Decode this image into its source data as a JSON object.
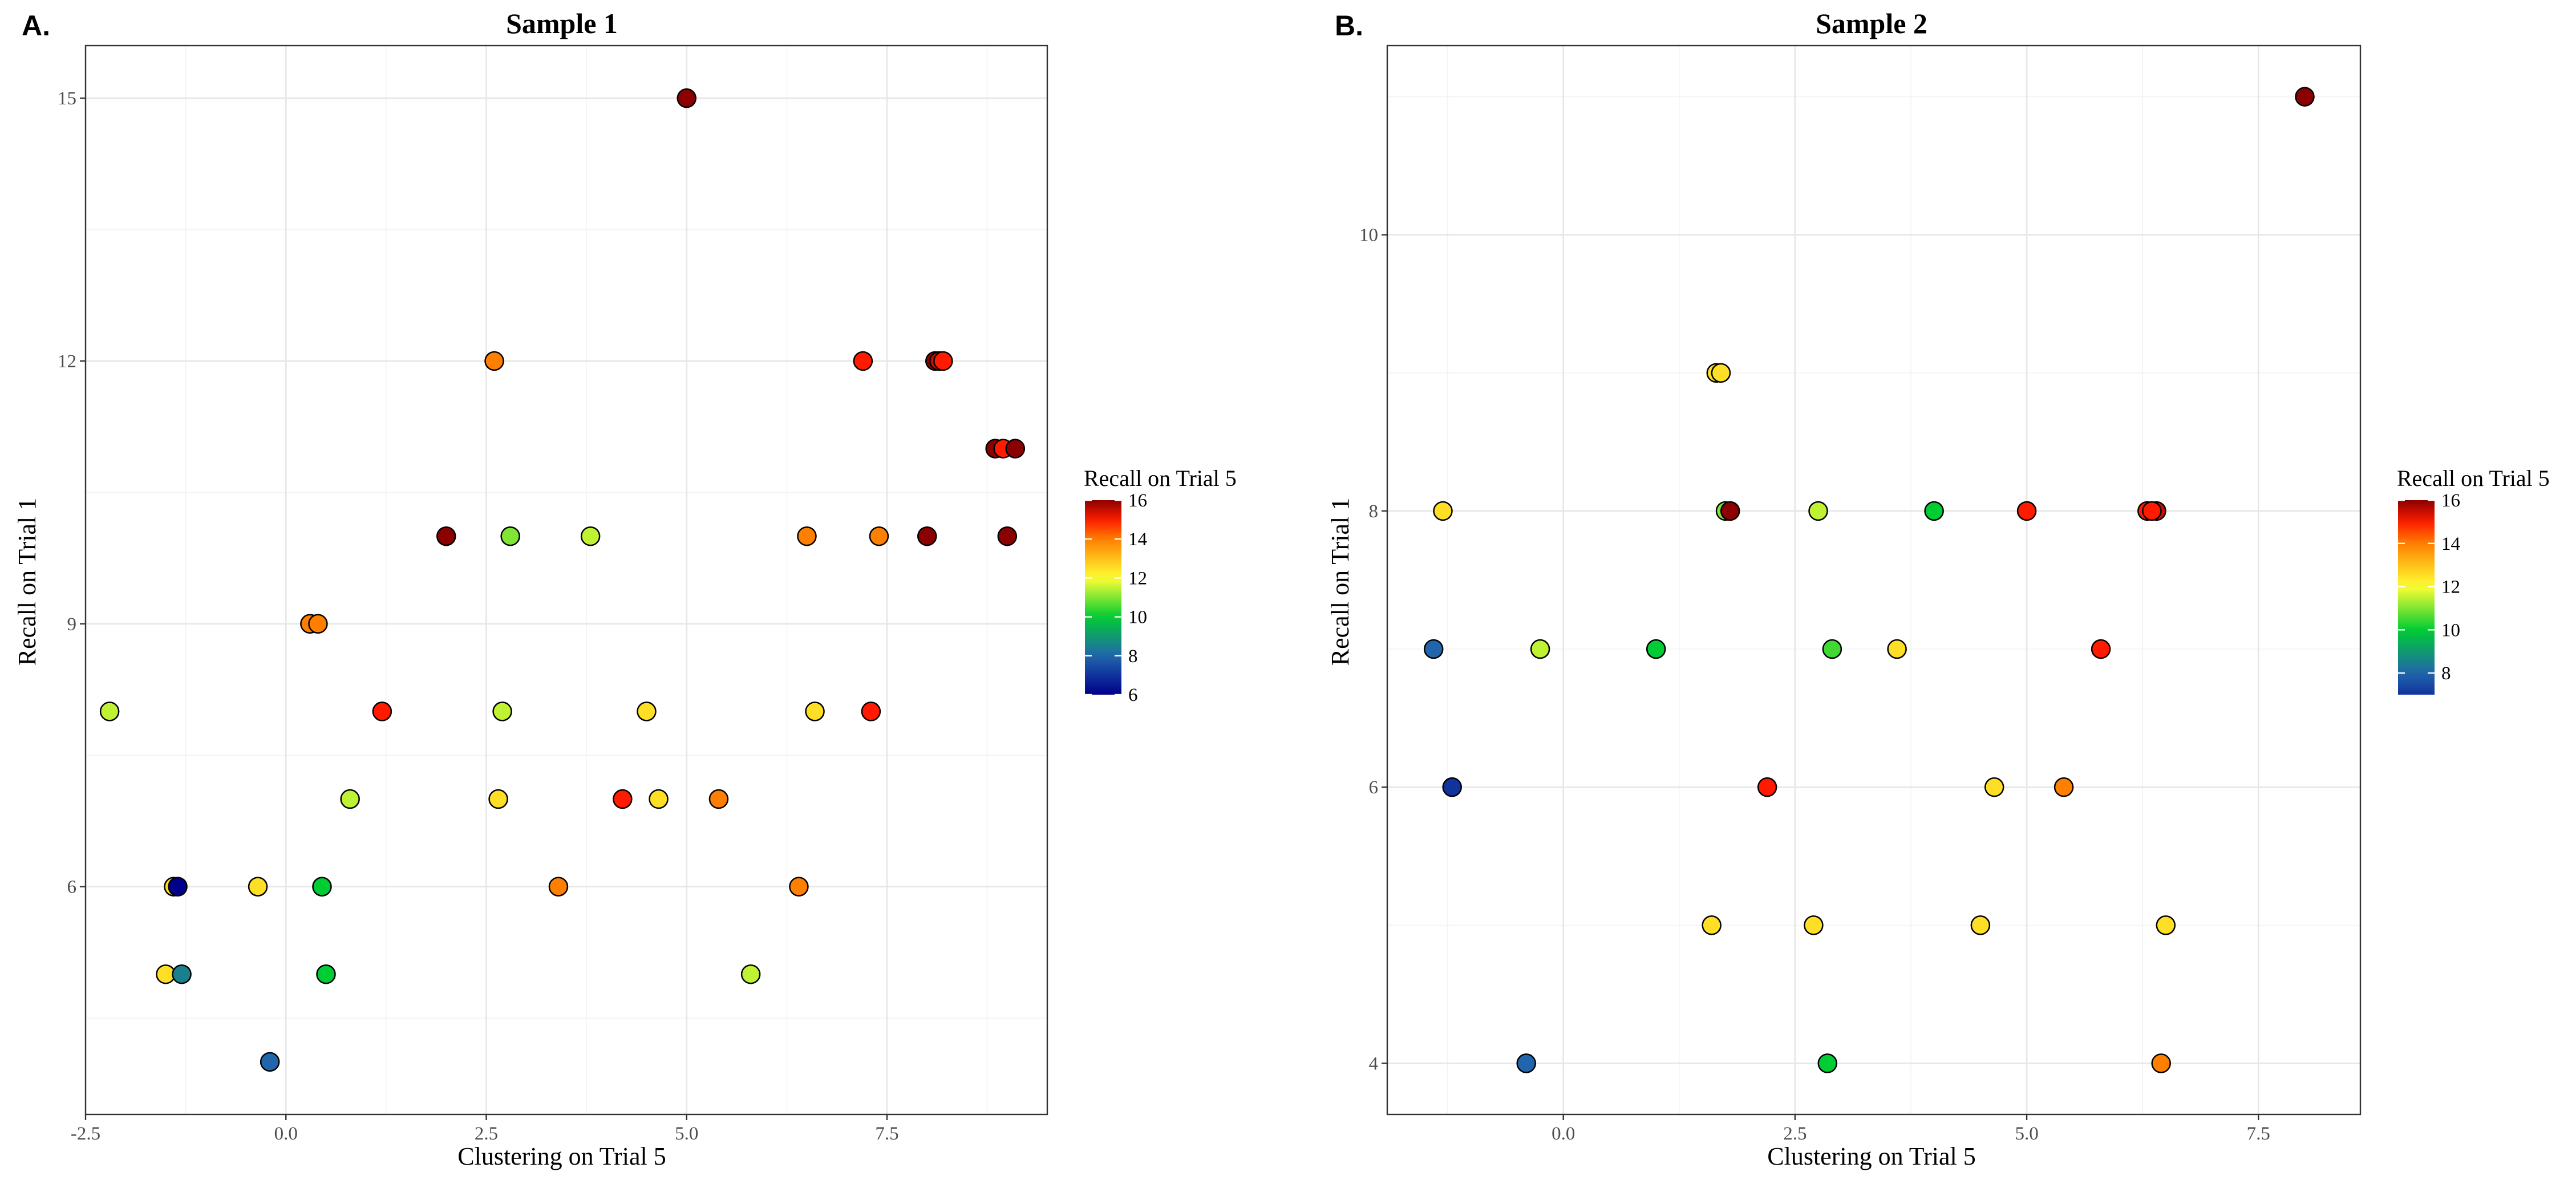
{
  "colors": {
    "scale": [
      "#00008b",
      "#2166ac",
      "#00cc33",
      "#ffff33",
      "#ff7f00",
      "#ff1a00",
      "#8b0000"
    ],
    "scale_stops": [
      6,
      8,
      10,
      12,
      14,
      15,
      16
    ]
  },
  "chart_data": [
    {
      "type": "scatter",
      "panel_letter": "A.",
      "title": "Sample 1",
      "xlabel": "Clustering on Trial 5",
      "ylabel": "Recall on Trial 1",
      "xlim": [
        -2.5,
        9.5
      ],
      "ylim": [
        3.4,
        15.6
      ],
      "xticks": [
        -2.5,
        0.0,
        2.5,
        5.0,
        7.5
      ],
      "xtick_labels": [
        "-2.5",
        "0.0",
        "2.5",
        "5.0",
        "7.5"
      ],
      "yticks": [
        6,
        9,
        12,
        15
      ],
      "ytick_labels": [
        "6",
        "9",
        "12",
        "15"
      ],
      "color_scale": {
        "title": "Recall on Trial 5",
        "min": 6,
        "max": 16,
        "ticks": [
          6,
          8,
          10,
          12,
          14,
          16
        ],
        "tick_labels": [
          "6",
          "8",
          "10",
          "12",
          "14",
          "16"
        ]
      },
      "points": [
        {
          "x": 5.0,
          "y": 15,
          "c": 16
        },
        {
          "x": 2.6,
          "y": 12,
          "c": 14
        },
        {
          "x": 7.2,
          "y": 12,
          "c": 15
        },
        {
          "x": 8.1,
          "y": 12,
          "c": 16
        },
        {
          "x": 8.15,
          "y": 12,
          "c": 15.5
        },
        {
          "x": 8.2,
          "y": 12,
          "c": 15
        },
        {
          "x": 8.85,
          "y": 11,
          "c": 16
        },
        {
          "x": 8.95,
          "y": 11,
          "c": 15
        },
        {
          "x": 9.1,
          "y": 11,
          "c": 16
        },
        {
          "x": 2.0,
          "y": 10,
          "c": 16
        },
        {
          "x": 2.8,
          "y": 10,
          "c": 11
        },
        {
          "x": 3.8,
          "y": 10,
          "c": 11.5
        },
        {
          "x": 6.5,
          "y": 10,
          "c": 14
        },
        {
          "x": 7.4,
          "y": 10,
          "c": 14
        },
        {
          "x": 8.0,
          "y": 10,
          "c": 16
        },
        {
          "x": 9.0,
          "y": 10,
          "c": 16
        },
        {
          "x": 0.3,
          "y": 9,
          "c": 14
        },
        {
          "x": 0.4,
          "y": 9,
          "c": 14
        },
        {
          "x": -2.2,
          "y": 8,
          "c": 11.5
        },
        {
          "x": 1.2,
          "y": 8,
          "c": 15
        },
        {
          "x": 2.7,
          "y": 8,
          "c": 11.5
        },
        {
          "x": 4.5,
          "y": 8,
          "c": 12.5
        },
        {
          "x": 6.6,
          "y": 8,
          "c": 12.5
        },
        {
          "x": 7.3,
          "y": 8,
          "c": 15
        },
        {
          "x": 0.8,
          "y": 7,
          "c": 11.5
        },
        {
          "x": 2.65,
          "y": 7,
          "c": 12.5
        },
        {
          "x": 4.2,
          "y": 7,
          "c": 15
        },
        {
          "x": 4.65,
          "y": 7,
          "c": 12.5
        },
        {
          "x": 5.4,
          "y": 7,
          "c": 14
        },
        {
          "x": -1.4,
          "y": 6,
          "c": 12.5
        },
        {
          "x": -1.35,
          "y": 6,
          "c": 6
        },
        {
          "x": -0.35,
          "y": 6,
          "c": 12.5
        },
        {
          "x": 0.45,
          "y": 6,
          "c": 10
        },
        {
          "x": 3.4,
          "y": 6,
          "c": 14
        },
        {
          "x": 6.4,
          "y": 6,
          "c": 14
        },
        {
          "x": -1.5,
          "y": 5,
          "c": 12.5
        },
        {
          "x": -1.3,
          "y": 5,
          "c": 8.5
        },
        {
          "x": 0.5,
          "y": 5,
          "c": 10
        },
        {
          "x": 5.8,
          "y": 5,
          "c": 11.5
        },
        {
          "x": -0.2,
          "y": 4,
          "c": 8
        }
      ]
    },
    {
      "type": "scatter",
      "panel_letter": "B.",
      "title": "Sample 2",
      "xlabel": "Clustering on Trial 5",
      "ylabel": "Recall on Trial 1",
      "xlim": [
        -1.9,
        8.6
      ],
      "ylim": [
        3.63,
        11.37
      ],
      "xticks": [
        0.0,
        2.5,
        5.0,
        7.5
      ],
      "xtick_labels": [
        "0.0",
        "2.5",
        "5.0",
        "7.5"
      ],
      "yticks": [
        4,
        6,
        8,
        10
      ],
      "ytick_labels": [
        "4",
        "6",
        "8",
        "10"
      ],
      "color_scale": {
        "title": "Recall on Trial 5",
        "min": 7,
        "max": 16,
        "ticks": [
          8,
          10,
          12,
          14,
          16
        ],
        "tick_labels": [
          "8",
          "10",
          "12",
          "14",
          "16"
        ]
      },
      "points": [
        {
          "x": 8.0,
          "y": 11,
          "c": 16
        },
        {
          "x": 1.65,
          "y": 9,
          "c": 12.5
        },
        {
          "x": 1.7,
          "y": 9,
          "c": 12.5
        },
        {
          "x": -1.3,
          "y": 8,
          "c": 12.5
        },
        {
          "x": 1.75,
          "y": 8,
          "c": 11
        },
        {
          "x": 1.8,
          "y": 8,
          "c": 16
        },
        {
          "x": 2.75,
          "y": 8,
          "c": 11.5
        },
        {
          "x": 4.0,
          "y": 8,
          "c": 10
        },
        {
          "x": 5.0,
          "y": 8,
          "c": 15
        },
        {
          "x": 6.3,
          "y": 8,
          "c": 15
        },
        {
          "x": 6.4,
          "y": 8,
          "c": 15.5
        },
        {
          "x": 6.35,
          "y": 8,
          "c": 15
        },
        {
          "x": -1.4,
          "y": 7,
          "c": 8
        },
        {
          "x": -0.25,
          "y": 7,
          "c": 11.5
        },
        {
          "x": 1.0,
          "y": 7,
          "c": 10
        },
        {
          "x": 2.9,
          "y": 7,
          "c": 10.5
        },
        {
          "x": 3.6,
          "y": 7,
          "c": 12.5
        },
        {
          "x": 5.8,
          "y": 7,
          "c": 15
        },
        {
          "x": -1.2,
          "y": 6,
          "c": 7
        },
        {
          "x": 2.2,
          "y": 6,
          "c": 15
        },
        {
          "x": 4.65,
          "y": 6,
          "c": 12.5
        },
        {
          "x": 5.4,
          "y": 6,
          "c": 14
        },
        {
          "x": 1.6,
          "y": 5,
          "c": 12.5
        },
        {
          "x": 2.7,
          "y": 5,
          "c": 12.5
        },
        {
          "x": 4.5,
          "y": 5,
          "c": 12.5
        },
        {
          "x": 6.5,
          "y": 5,
          "c": 12.5
        },
        {
          "x": -0.4,
          "y": 4,
          "c": 8
        },
        {
          "x": 2.85,
          "y": 4,
          "c": 10
        },
        {
          "x": 6.45,
          "y": 4,
          "c": 14
        }
      ]
    }
  ]
}
